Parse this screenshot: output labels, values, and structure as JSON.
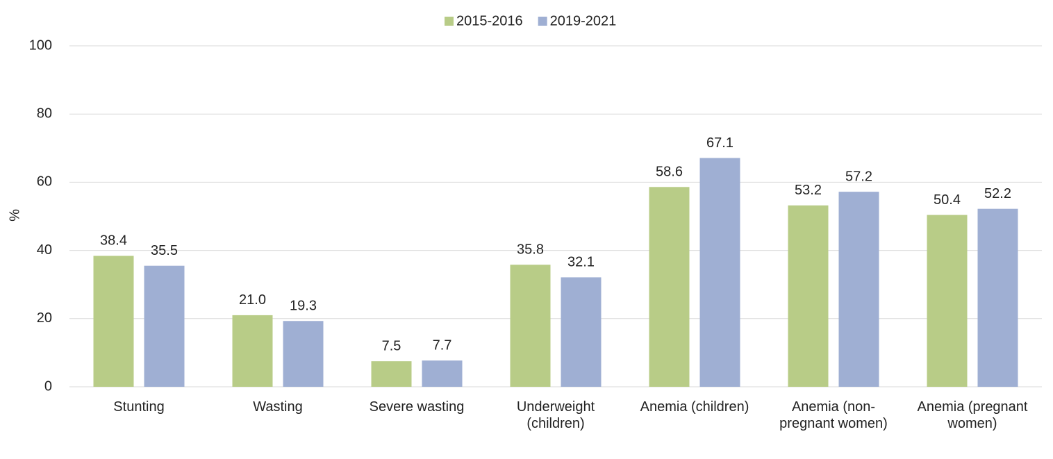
{
  "chart_data": {
    "type": "bar",
    "ylabel": "%",
    "categories": [
      "Stunting",
      "Wasting",
      "Severe wasting",
      "Underweight (children)",
      "Anemia (children)",
      "Anemia (non-pregnant women)",
      "Anemia (pregnant women)"
    ],
    "series": [
      {
        "name": "2015-2016",
        "color": "#b8cc87",
        "values": [
          38.4,
          21.0,
          7.5,
          35.8,
          58.6,
          53.2,
          50.4
        ],
        "value_labels": [
          "38.4",
          "21.0",
          "7.5",
          "35.8",
          "58.6",
          "53.2",
          "50.4"
        ]
      },
      {
        "name": "2019-2021",
        "color": "#9fafd3",
        "values": [
          35.5,
          19.3,
          7.7,
          32.1,
          67.1,
          57.2,
          52.2
        ],
        "value_labels": [
          "35.5",
          "19.3",
          "7.7",
          "32.1",
          "67.1",
          "57.2",
          "52.2"
        ]
      }
    ],
    "ylim": [
      0,
      100
    ],
    "yticks": [
      0,
      20,
      40,
      60,
      80,
      100
    ],
    "grid": true,
    "legend": "top"
  }
}
